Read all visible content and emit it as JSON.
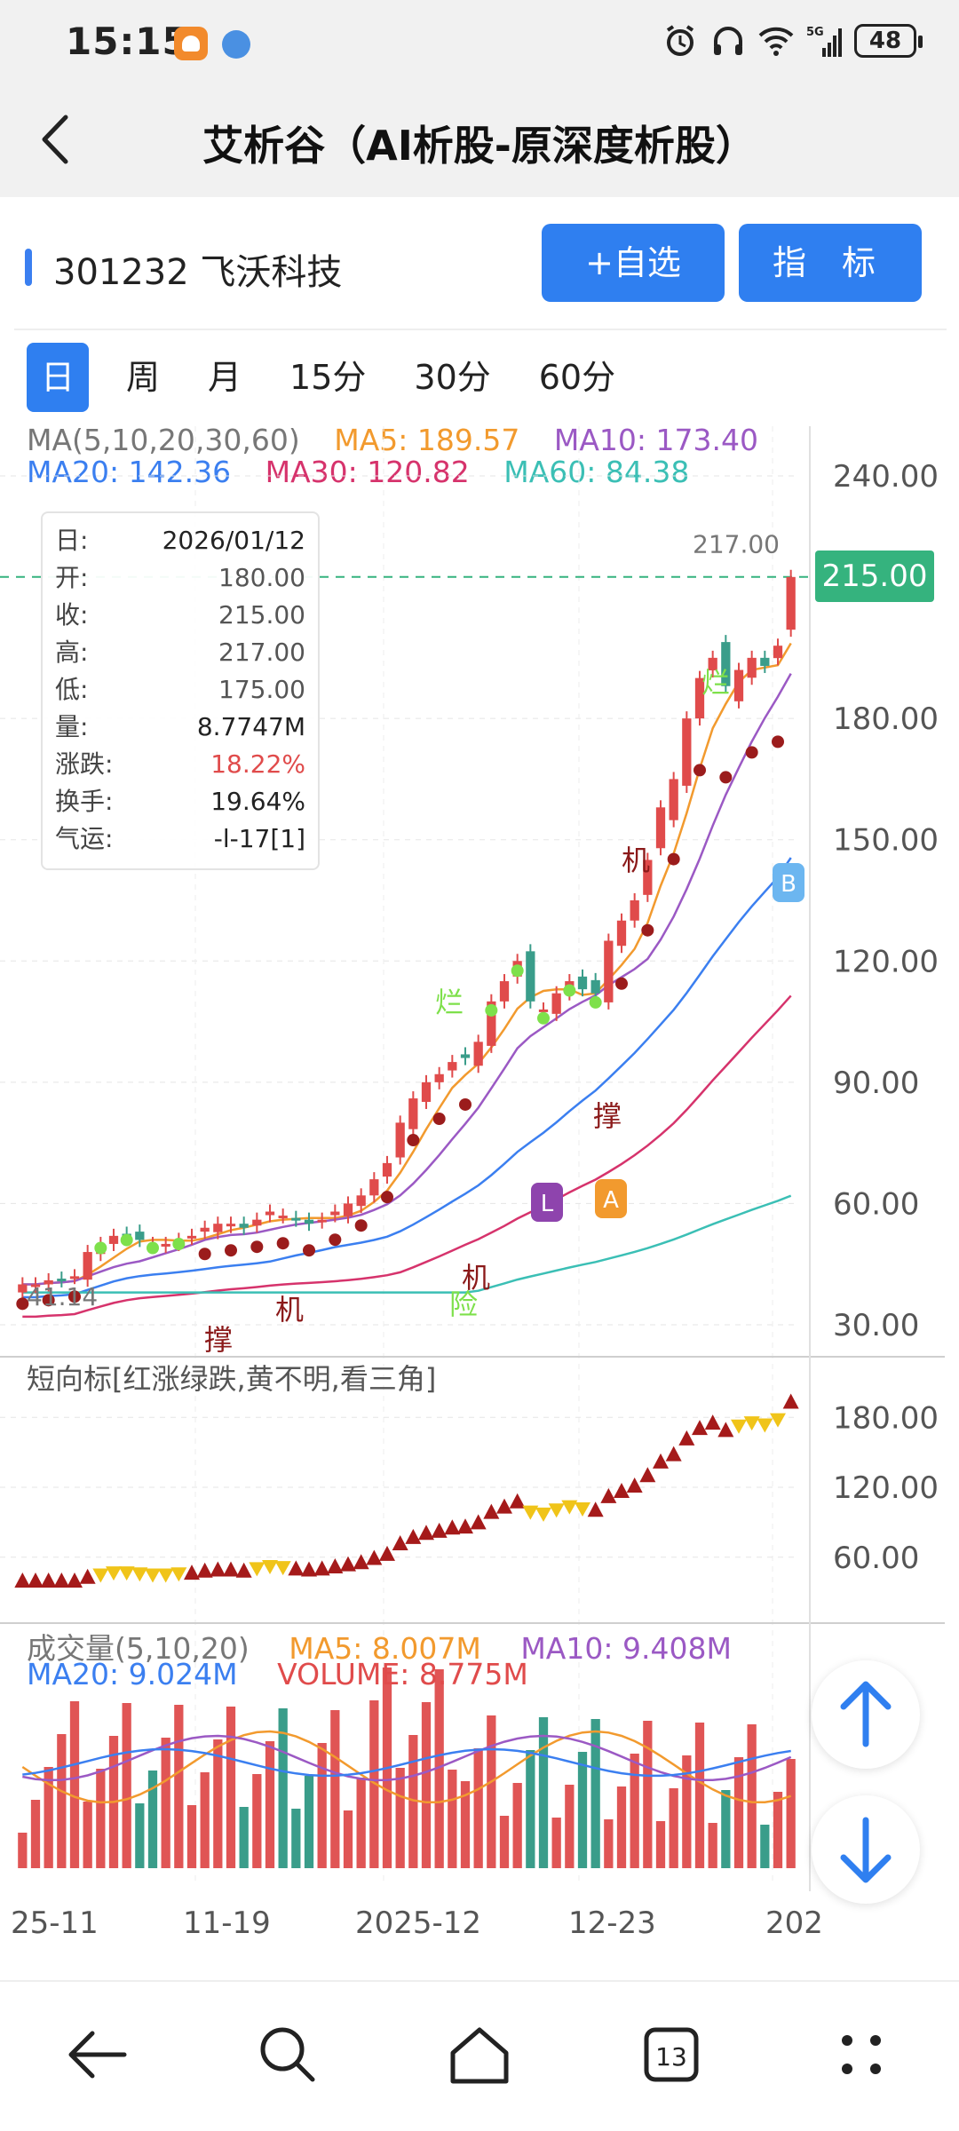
{
  "status_bar": {
    "time": "15:15",
    "network": "5G",
    "battery": "48"
  },
  "header": {
    "title": "艾析谷（AI析股-原深度析股）"
  },
  "stock": {
    "code_name": "301232 飞沃科技"
  },
  "buttons": {
    "watchlist": "+自选",
    "indicator": "指 标"
  },
  "tabs": [
    "日",
    "周",
    "月",
    "15分",
    "30分",
    "60分"
  ],
  "ma_legend": {
    "params": "MA(5,10,20,30,60)",
    "ma5": "MA5: 189.57",
    "ma10": "MA10: 173.40",
    "ma20": "MA20: 142.36",
    "ma30": "MA30: 120.82",
    "ma60": "MA60: 84.38"
  },
  "colors": {
    "ma5": "#f29a2e",
    "ma10": "#9b59c4",
    "ma20": "#3b7ff0",
    "ma30": "#d6336c",
    "ma60": "#3bbfb5",
    "up": "#e04b4b",
    "down": "#3a9d8a",
    "accent": "#2f7ff0"
  },
  "info_box": {
    "rows": [
      {
        "k": "日:",
        "v": "2026/01/12"
      },
      {
        "k": "开:",
        "v": "180.00"
      },
      {
        "k": "收:",
        "v": "215.00"
      },
      {
        "k": "高:",
        "v": "217.00"
      },
      {
        "k": "低:",
        "v": "175.00"
      },
      {
        "k": "量:",
        "v": "8.7747M"
      },
      {
        "k": "涨跌:",
        "v": "18.22%"
      },
      {
        "k": "换手:",
        "v": "19.64%"
      },
      {
        "k": "气运:",
        "v": "-l-17[1]"
      }
    ]
  },
  "price": {
    "current": "215.00",
    "high_marker": "217.00",
    "low_marker": "41.14"
  },
  "price_axis": [
    "240.00",
    "180.00",
    "150.00",
    "120.00",
    "90.00",
    "60.00",
    "30.00"
  ],
  "short_indicator": {
    "title": "短向标[红涨绿跌,黄不明,看三角]",
    "axis": [
      "180.00",
      "120.00",
      "60.00"
    ]
  },
  "volume": {
    "params": "成交量(5,10,20)",
    "ma5": "MA5: 8.007M",
    "ma10": "MA10: 9.408M",
    "ma20": "MA20: 9.024M",
    "vol": "VOLUME: 8.775M"
  },
  "dates": [
    "25-11",
    "11-19",
    "2025-12",
    "12-23",
    "202"
  ],
  "chart_data": {
    "type": "candlestick",
    "ylim": [
      20,
      250
    ],
    "ohlc_close_approx": [
      40,
      40,
      41,
      41,
      42,
      48,
      50,
      52,
      52,
      51,
      50,
      50,
      51,
      52,
      54,
      55,
      55,
      54,
      56,
      58,
      57,
      56,
      55,
      56,
      58,
      60,
      62,
      66,
      70,
      80,
      86,
      90,
      92,
      95,
      96,
      100,
      110,
      115,
      120,
      110,
      108,
      112,
      115,
      113,
      112,
      125,
      130,
      135,
      145,
      158,
      165,
      180,
      190,
      195,
      188,
      192,
      195,
      193,
      198,
      215
    ],
    "annotations": [
      "撑",
      "机",
      "险",
      "烂",
      "B",
      "L",
      "A"
    ]
  }
}
